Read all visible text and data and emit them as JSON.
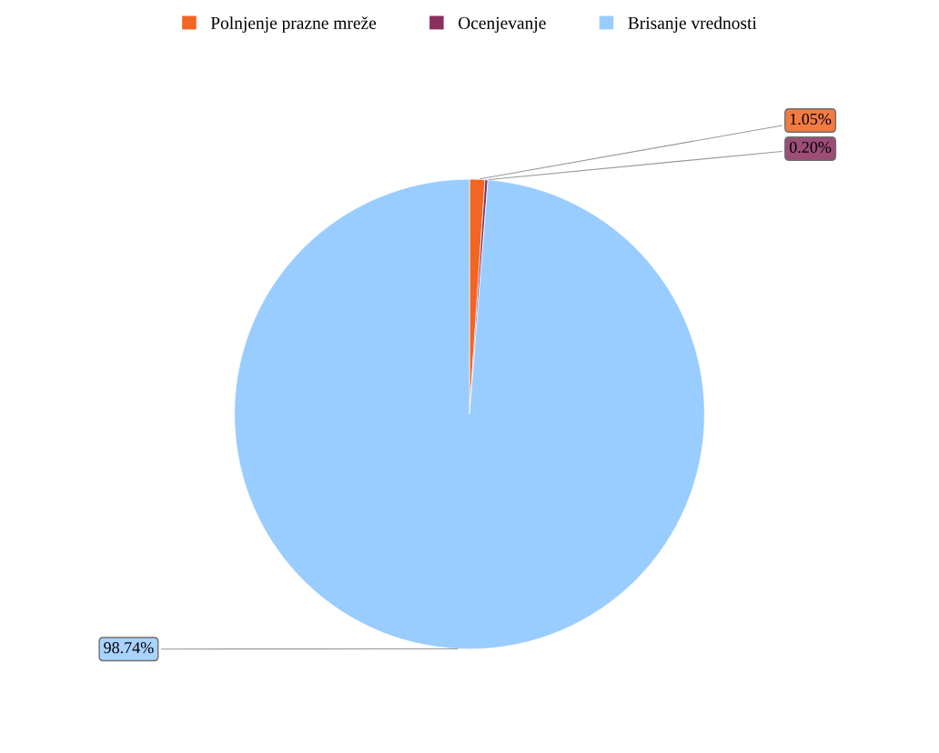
{
  "chart_data": {
    "type": "pie",
    "categories": [
      "Polnjenje prazne mreže",
      "Ocenjevanje",
      "Brisanje vrednosti"
    ],
    "values": [
      1.05,
      0.2,
      98.74
    ],
    "colors": [
      "#f26522",
      "#8c2f5f",
      "#99ccff"
    ],
    "value_labels": [
      "1.05%",
      "0.20%",
      "98.74%"
    ],
    "legend": "top"
  }
}
